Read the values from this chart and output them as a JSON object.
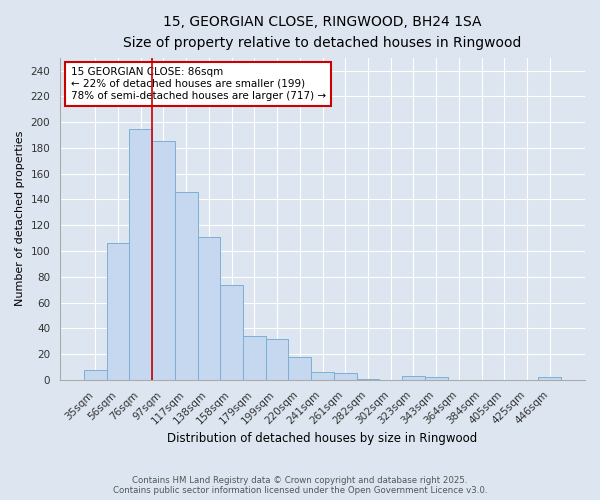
{
  "title1": "15, GEORGIAN CLOSE, RINGWOOD, BH24 1SA",
  "title2": "Size of property relative to detached houses in Ringwood",
  "xlabel": "Distribution of detached houses by size in Ringwood",
  "ylabel": "Number of detached properties",
  "categories": [
    "35sqm",
    "56sqm",
    "76sqm",
    "97sqm",
    "117sqm",
    "138sqm",
    "158sqm",
    "179sqm",
    "199sqm",
    "220sqm",
    "241sqm",
    "261sqm",
    "282sqm",
    "302sqm",
    "323sqm",
    "343sqm",
    "364sqm",
    "384sqm",
    "405sqm",
    "425sqm",
    "446sqm"
  ],
  "values": [
    8,
    106,
    195,
    185,
    146,
    111,
    74,
    34,
    32,
    18,
    6,
    5,
    1,
    0,
    3,
    2,
    0,
    0,
    0,
    0,
    2
  ],
  "bar_color": "#c5d8ef",
  "bar_edgecolor": "#7bafd4",
  "background_color": "#dde6f0",
  "red_line_x": 2.5,
  "annotation_line1": "15 GEORGIAN CLOSE: 86sqm",
  "annotation_line2": "← 22% of detached houses are smaller (199)",
  "annotation_line3": "78% of semi-detached houses are larger (717) →",
  "annotation_box_color": "#ffffff",
  "annotation_box_edgecolor": "#cc0000",
  "ylim": [
    0,
    250
  ],
  "yticks": [
    0,
    20,
    40,
    60,
    80,
    100,
    120,
    140,
    160,
    180,
    200,
    220,
    240
  ],
  "footer1": "Contains HM Land Registry data © Crown copyright and database right 2025.",
  "footer2": "Contains public sector information licensed under the Open Government Licence v3.0."
}
